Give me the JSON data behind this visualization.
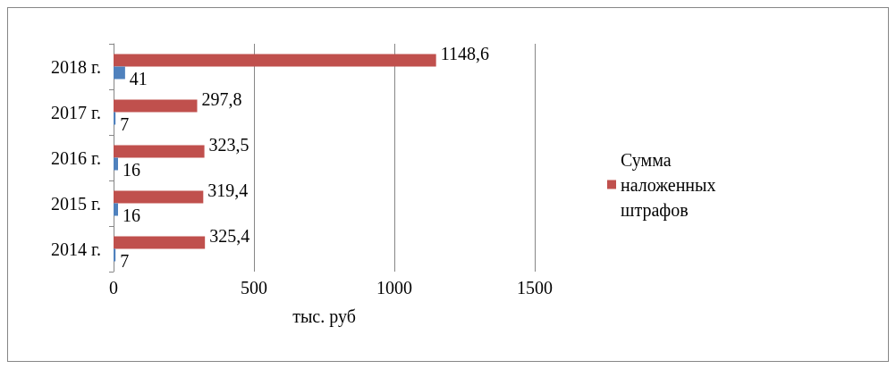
{
  "chart_data": {
    "type": "bar",
    "orientation": "horizontal",
    "xlabel": "тыс. руб",
    "categories": [
      "2018 г.",
      "2017 г.",
      "2016 г.",
      "2015 г.",
      "2014 г."
    ],
    "series": [
      {
        "name": "Сумма наложенных штрафов",
        "color": "#c0504d",
        "values": [
          1148.6,
          297.8,
          323.5,
          319.4,
          325.4
        ],
        "value_labels": [
          "1148,6",
          "297,8",
          "323,5",
          "319,4",
          "325,4"
        ]
      },
      {
        "color": "#4f81bd",
        "values": [
          41,
          7,
          16,
          16,
          7
        ],
        "value_labels": [
          "41",
          "7",
          "16",
          "16",
          "7"
        ]
      }
    ],
    "xlim": [
      0,
      1500
    ],
    "xticks": [
      0,
      500,
      1000,
      1500
    ],
    "grid": "x",
    "legend": "right"
  }
}
